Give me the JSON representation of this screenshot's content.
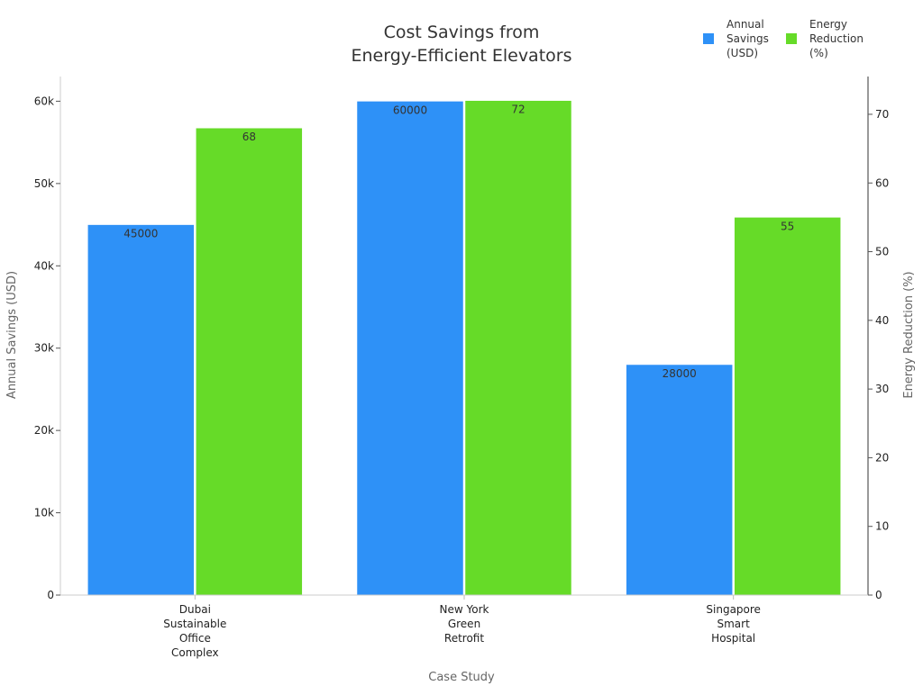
{
  "chart_data": {
    "type": "bar",
    "title": [
      "Cost Savings from",
      "Energy-Efficient Elevators"
    ],
    "xlabel": "Case Study",
    "ylabel_left": "Annual Savings (USD)",
    "ylabel_right": "Energy Reduction (%)",
    "categories": [
      [
        "Dubai",
        "Sustainable",
        "Office",
        "Complex"
      ],
      [
        "New York",
        "Green",
        "Retrofit"
      ],
      [
        "Singapore",
        "Smart",
        "Hospital"
      ]
    ],
    "series": [
      {
        "name": [
          "Annual",
          "Savings",
          "(USD)"
        ],
        "axis": "left",
        "color": "#2e91f7",
        "values": [
          45000,
          60000,
          28000
        ]
      },
      {
        "name": [
          "Energy",
          "Reduction",
          "(%)"
        ],
        "axis": "right",
        "color": "#66db28",
        "values": [
          68,
          72,
          55
        ]
      }
    ],
    "ylim_left": [
      0,
      63000
    ],
    "ylim_right": [
      0,
      75.5
    ],
    "yticks_left": [
      0,
      10000,
      20000,
      30000,
      40000,
      50000,
      60000
    ],
    "ytick_labels_left": [
      "0",
      "10k",
      "20k",
      "30k",
      "40k",
      "50k",
      "60k"
    ],
    "yticks_right": [
      0,
      10,
      20,
      30,
      40,
      50,
      60,
      70
    ],
    "grid": false,
    "legend_position": "top-right"
  }
}
